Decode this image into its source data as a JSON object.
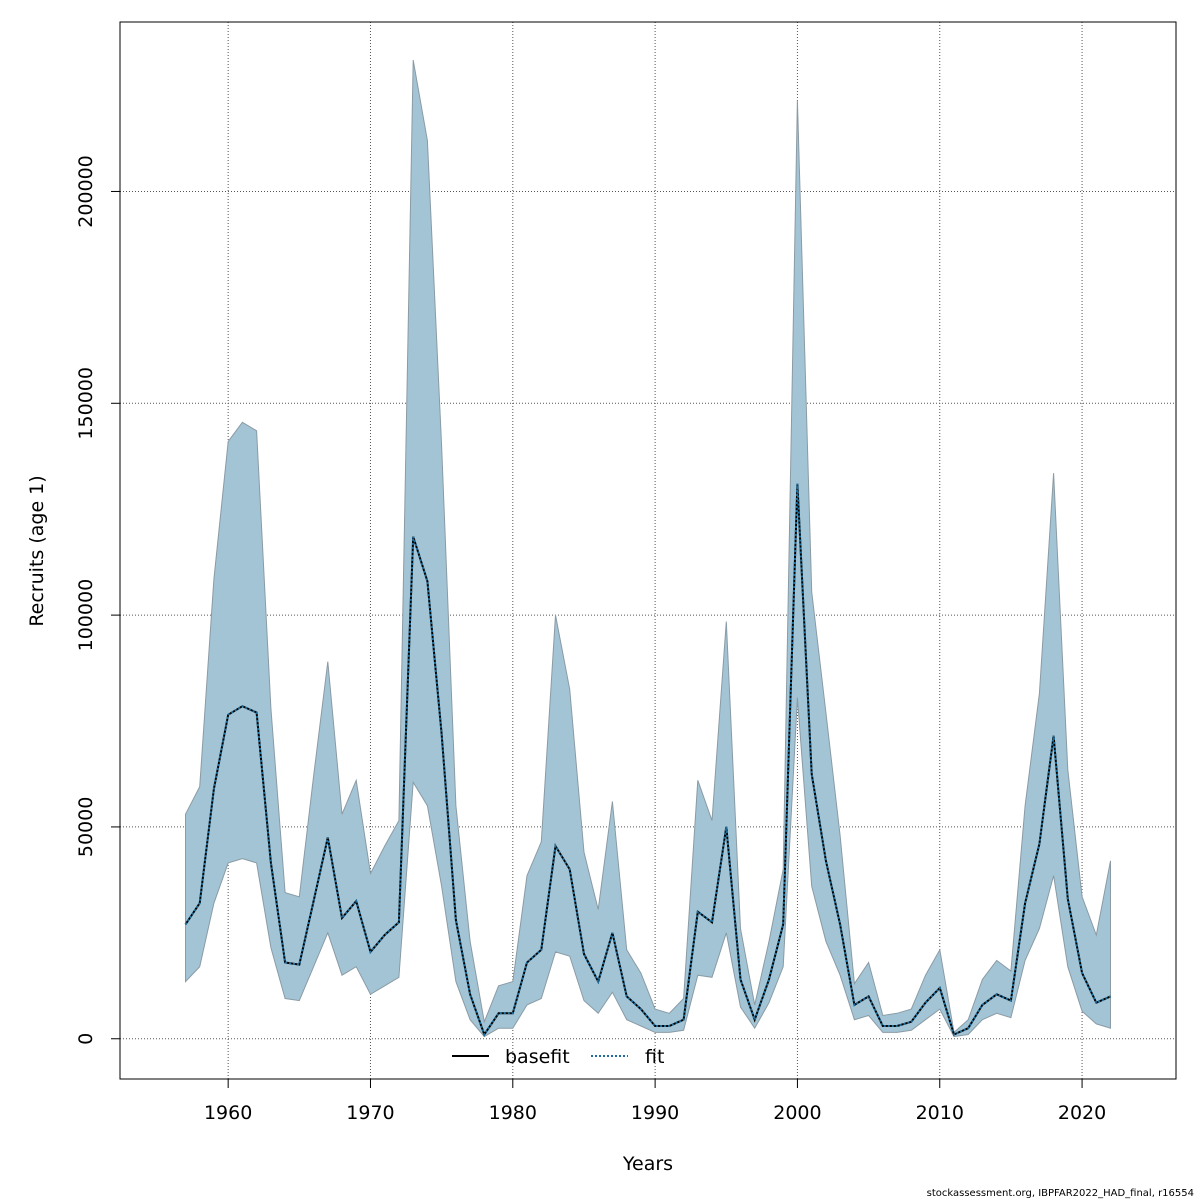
{
  "chart_data": {
    "type": "line",
    "xlabel": "Years",
    "ylabel": "Recruits (age 1)",
    "xlim": [
      1952.4,
      2026.6
    ],
    "ylim": [
      -9500,
      240000
    ],
    "x_ticks": [
      1960,
      1970,
      1980,
      1990,
      2000,
      2010,
      2020
    ],
    "y_ticks": [
      0,
      50000,
      100000,
      150000,
      200000
    ],
    "grid": true,
    "legend_position": "bottom-center",
    "band_color": "#a3c4d5",
    "band_edge_color": "#8a9ba5",
    "years": [
      1957,
      1958,
      1959,
      1960,
      1961,
      1962,
      1963,
      1964,
      1965,
      1966,
      1967,
      1968,
      1969,
      1970,
      1971,
      1972,
      1973,
      1974,
      1975,
      1976,
      1977,
      1978,
      1979,
      1980,
      1981,
      1982,
      1983,
      1984,
      1985,
      1986,
      1987,
      1988,
      1989,
      1990,
      1991,
      1992,
      1993,
      1994,
      1995,
      1996,
      1997,
      1998,
      1999,
      2000,
      2001,
      2002,
      2003,
      2004,
      2005,
      2006,
      2007,
      2008,
      2009,
      2010,
      2011,
      2012,
      2013,
      2014,
      2015,
      2016,
      2017,
      2018,
      2019,
      2020,
      2021,
      2022
    ],
    "upper": [
      53000,
      59500,
      108500,
      141000,
      145500,
      143500,
      78000,
      34500,
      33500,
      62000,
      89000,
      53000,
      61000,
      39000,
      45500,
      51500,
      231000,
      212000,
      140000,
      55000,
      23000,
      4000,
      12500,
      13500,
      38500,
      46500,
      100000,
      82500,
      44000,
      30500,
      56000,
      21000,
      15500,
      7000,
      6000,
      9500,
      61000,
      51500,
      98500,
      26000,
      8000,
      23000,
      40000,
      221500,
      105500,
      77000,
      48000,
      13000,
      18000,
      5500,
      6000,
      7000,
      15000,
      21000,
      1500,
      4500,
      14000,
      18500,
      16000,
      55000,
      81500,
      133500,
      63500,
      33500,
      24500,
      42000
    ],
    "lower": [
      13500,
      17000,
      32000,
      41500,
      42500,
      41500,
      21500,
      9500,
      9000,
      17000,
      25000,
      15000,
      17000,
      10500,
      12500,
      14500,
      60500,
      55000,
      36000,
      13500,
      4500,
      500,
      2500,
      2500,
      8000,
      9500,
      20500,
      19500,
      9000,
      6000,
      11000,
      4500,
      3000,
      1500,
      1500,
      2000,
      15000,
      14500,
      25000,
      7500,
      2500,
      8500,
      17000,
      80500,
      36000,
      23000,
      15000,
      4500,
      5500,
      1500,
      1500,
      2000,
      4500,
      7000,
      500,
      1000,
      4500,
      6000,
      5000,
      18500,
      26000,
      38500,
      17000,
      6500,
      3500,
      2500
    ],
    "series": [
      {
        "name": "basefit",
        "color": "#000000",
        "values": [
          27000,
          32000,
          59000,
          76500,
          78500,
          77000,
          41500,
          18000,
          17500,
          32500,
          47500,
          28500,
          32500,
          20500,
          24500,
          27500,
          118500,
          108000,
          72000,
          28000,
          10500,
          1000,
          6000,
          6000,
          18000,
          21000,
          45500,
          40000,
          20000,
          13500,
          25000,
          10000,
          7000,
          3000,
          3000,
          4500,
          30000,
          27500,
          50000,
          14000,
          4500,
          14000,
          27000,
          131000,
          62500,
          42000,
          27000,
          8000,
          10000,
          3000,
          3000,
          4000,
          8500,
          12000,
          1000,
          2500,
          8000,
          10500,
          9000,
          32000,
          46000,
          71500,
          33000,
          15500,
          8500,
          10000
        ]
      },
      {
        "name": "fit",
        "color": "#1f6f9e",
        "values": [
          27000,
          32000,
          59000,
          76500,
          78500,
          77000,
          41500,
          18000,
          17500,
          32500,
          47500,
          28500,
          32500,
          20500,
          24500,
          27500,
          118500,
          108000,
          72000,
          28000,
          10500,
          1000,
          6000,
          6000,
          18000,
          21000,
          45500,
          40000,
          20000,
          13500,
          25000,
          10000,
          7000,
          3000,
          3000,
          4500,
          30000,
          27500,
          50000,
          14000,
          4500,
          14000,
          27000,
          131000,
          62500,
          42000,
          27000,
          8000,
          10000,
          3000,
          3000,
          4000,
          8500,
          12000,
          1000,
          2500,
          8000,
          10500,
          9000,
          32000,
          46000,
          71500,
          33000,
          15500,
          8500,
          10000
        ]
      }
    ]
  },
  "footer_text": "stockassessment.org, IBPFAR2022_HAD_final, r16554"
}
